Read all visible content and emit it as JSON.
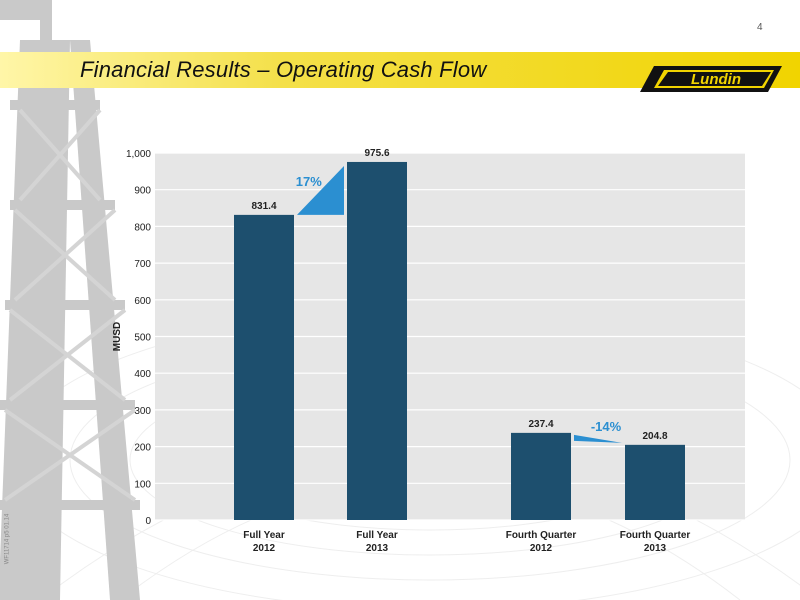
{
  "page": {
    "number": "4",
    "title": "Financial Results – Operating Cash Flow",
    "logo_text": "Lundin",
    "side_code": "WF11714 p5 01.14"
  },
  "colors": {
    "bar": "#1d4f6e",
    "plot_bg": "#e6e6e6",
    "accent_blue": "#2b8fd1",
    "band_yellow": "#f1d400"
  },
  "chart_data": {
    "type": "bar",
    "categories": [
      [
        "Full Year",
        "2012"
      ],
      [
        "Full Year",
        "2013"
      ],
      [
        "Fourth Quarter",
        "2012"
      ],
      [
        "Fourth Quarter",
        "2013"
      ]
    ],
    "values": [
      831.4,
      975.6,
      237.4,
      204.8
    ],
    "value_labels": [
      "831.4",
      "975.6",
      "237.4",
      "204.8"
    ],
    "ylabel": "MUSD",
    "ylim": [
      0,
      1000
    ],
    "yticks": [
      "0",
      "100",
      "200",
      "300",
      "400",
      "500",
      "600",
      "700",
      "800",
      "900",
      "1,000"
    ],
    "grid": true,
    "annotations": [
      {
        "text": "17%",
        "from": 0,
        "to": 1,
        "direction": "up"
      },
      {
        "text": "-14%",
        "from": 2,
        "to": 3,
        "direction": "down"
      }
    ]
  }
}
